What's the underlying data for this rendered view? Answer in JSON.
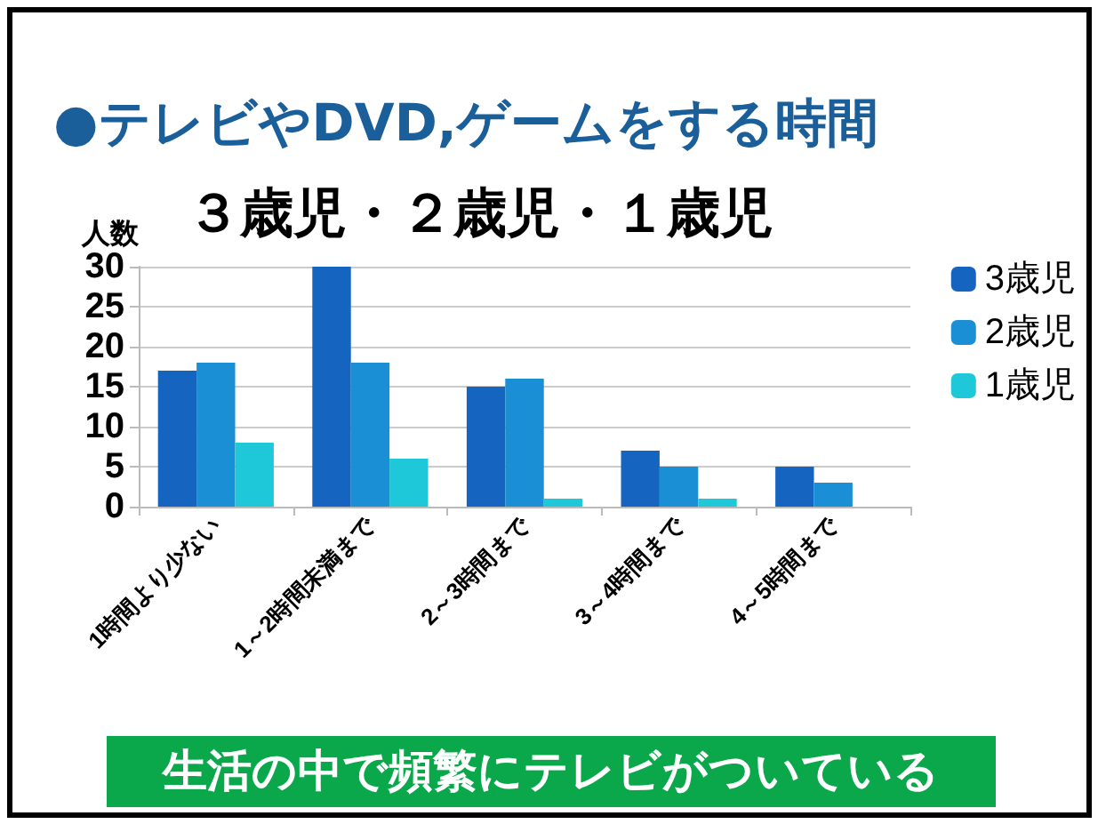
{
  "chart_data": {
    "type": "bar",
    "title": "●テレビやDVD,ゲームをする時間",
    "subtitle": "３歳児・２歳児・１歳児",
    "ylabel": "人数",
    "categories": [
      "1時間より少ない",
      "1～2時間未満まで",
      "2～3時間まで",
      "3～4時間まで",
      "4～5時間まで"
    ],
    "series": [
      {
        "name": "3歳児",
        "color": "#1565c0",
        "values": [
          17,
          30,
          15,
          7,
          5
        ]
      },
      {
        "name": "2歳児",
        "color": "#1a8fd6",
        "values": [
          18,
          18,
          16,
          5,
          3
        ]
      },
      {
        "name": "1歳児",
        "color": "#1ec8d8",
        "values": [
          8,
          6,
          1,
          1,
          0
        ]
      }
    ],
    "ylim": [
      0,
      30
    ],
    "yticks": [
      0,
      5,
      10,
      15,
      20,
      25,
      30
    ],
    "grid": "y",
    "legend": "top right",
    "annotations": [
      "生活の中で頻繁にテレビがついている"
    ]
  }
}
